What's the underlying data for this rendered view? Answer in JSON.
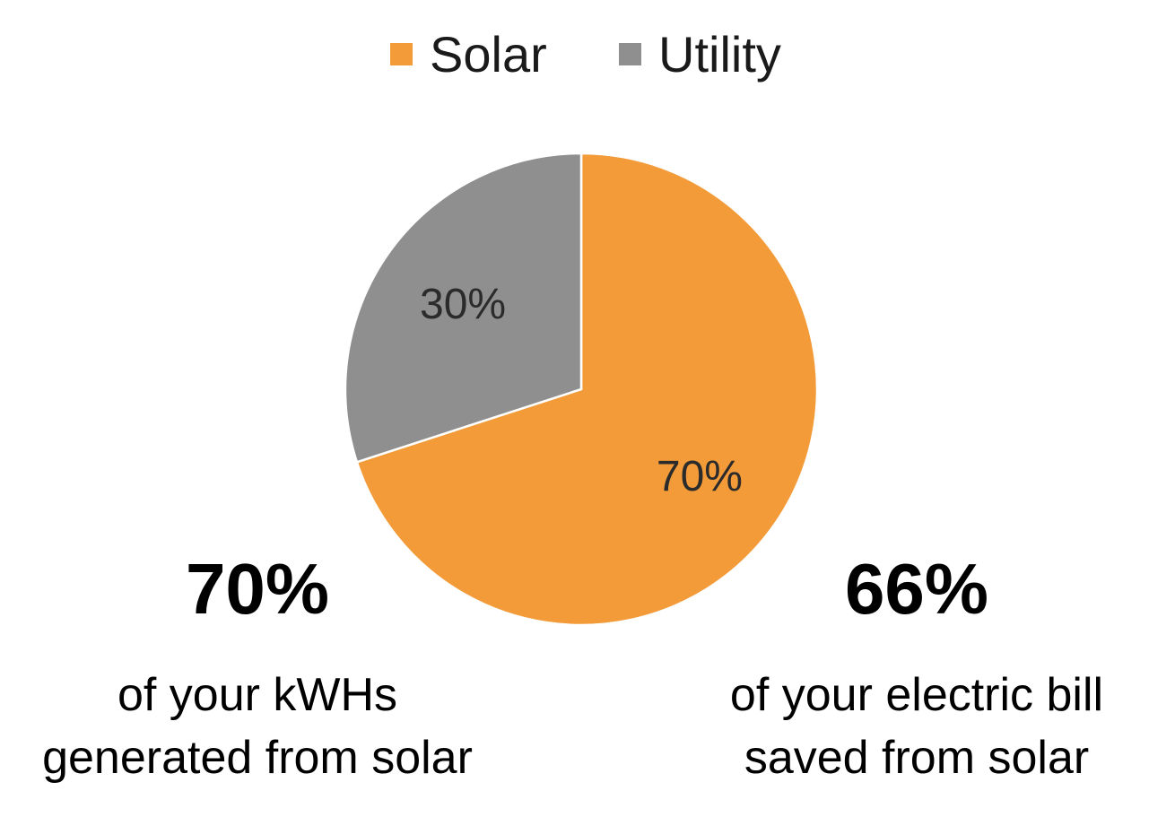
{
  "chart_data": {
    "type": "pie",
    "categories": [
      "Solar",
      "Utility"
    ],
    "values": [
      70,
      30
    ],
    "value_labels": [
      "70%",
      "30%"
    ],
    "colors": [
      "#f29b38",
      "#8f8f8f"
    ],
    "legend": "top",
    "annotations": [
      {
        "headline": "70%",
        "lines": [
          "of your kWHs",
          "generated from solar"
        ]
      },
      {
        "headline": "66%",
        "lines": [
          "of your electric bill",
          "saved from solar"
        ]
      }
    ]
  }
}
